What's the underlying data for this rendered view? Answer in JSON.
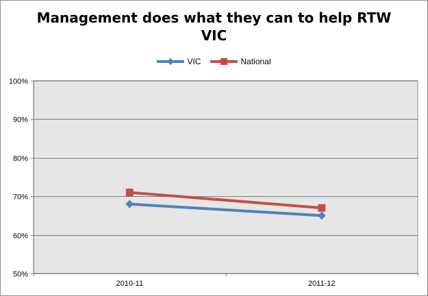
{
  "chart_data": {
    "type": "line",
    "title_lines": [
      "Management does what they can to help RTW",
      "VIC"
    ],
    "categories": [
      "2010-11",
      "2011-12"
    ],
    "series": [
      {
        "name": "VIC",
        "values": [
          0.68,
          0.65
        ],
        "color": "#4f81bd",
        "marker": "diamond"
      },
      {
        "name": "National",
        "values": [
          0.71,
          0.67
        ],
        "color": "#c0504d",
        "marker": "square"
      }
    ],
    "ylim": [
      0.5,
      1.0
    ],
    "y_ticks": [
      0.5,
      0.6,
      0.7,
      0.8,
      0.9,
      1.0
    ],
    "y_tick_labels": [
      "50%",
      "60%",
      "70%",
      "80%",
      "90%",
      "100%"
    ],
    "legend_position": "top",
    "grid": true,
    "plot_background": "#e6e6e6",
    "gridline_color": "#7f7f7f"
  }
}
